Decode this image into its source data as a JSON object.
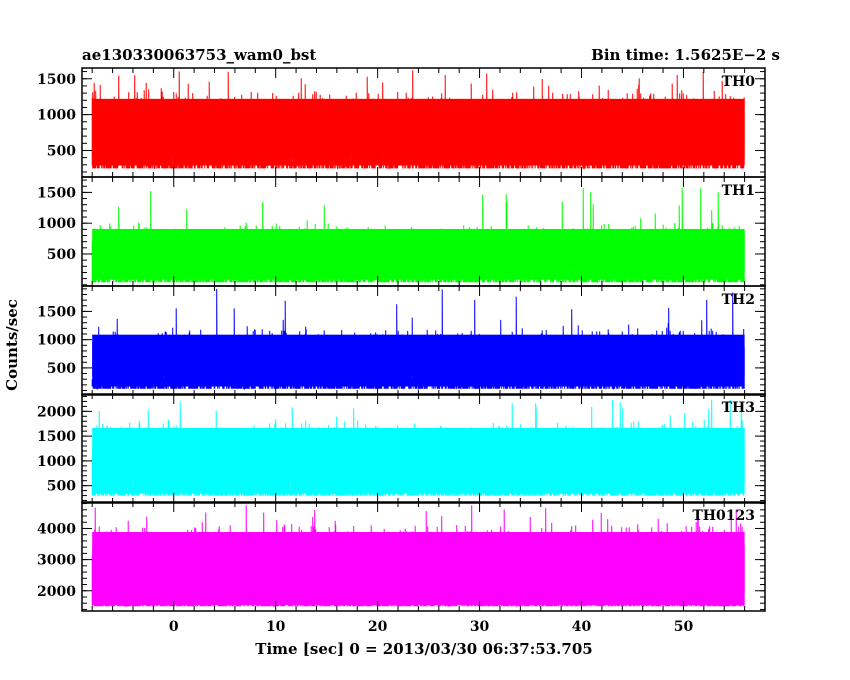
{
  "header": {
    "left_title": "ae130330063753_wam0_bst",
    "right_title": "Bin time: 1.5625E−2 s"
  },
  "chart_data": [
    {
      "type": "line",
      "name": "TH0",
      "color": "#ff0000",
      "xlim": [
        -9,
        58
      ],
      "ylim": [
        130,
        1650
      ],
      "yticks": [
        500,
        1000,
        1500
      ],
      "ytick_labels": [
        "500",
        "1000",
        "1500"
      ],
      "data_range": [
        -8,
        56
      ],
      "level": {
        "base": 250,
        "lo": 400,
        "hi": 1400,
        "peak": 1620
      }
    },
    {
      "type": "line",
      "name": "TH1",
      "color": "#00ff00",
      "xlim": [
        -9,
        58
      ],
      "ylim": [
        -20,
        1750
      ],
      "yticks": [
        500,
        1000,
        1500
      ],
      "ytick_labels": [
        "500",
        "1000",
        "1500"
      ],
      "data_range": [
        -8,
        56
      ],
      "level": {
        "base": 40,
        "lo": 250,
        "hi": 1050,
        "peak": 1600
      }
    },
    {
      "type": "line",
      "name": "TH2",
      "color": "#0000ff",
      "xlim": [
        -9,
        58
      ],
      "ylim": [
        20,
        1950
      ],
      "yticks": [
        500,
        1000,
        1500
      ],
      "ytick_labels": [
        "500",
        "1000",
        "1500"
      ],
      "data_range": [
        -8,
        56
      ],
      "level": {
        "base": 130,
        "lo": 350,
        "hi": 1250,
        "peak": 1900
      }
    },
    {
      "type": "line",
      "name": "TH3",
      "color": "#00ffff",
      "xlim": [
        -9,
        58
      ],
      "ylim": [
        150,
        2350
      ],
      "yticks": [
        500,
        1000,
        1500,
        2000
      ],
      "ytick_labels": [
        "500",
        "1000",
        "1500",
        "2000"
      ],
      "data_range": [
        -8,
        56
      ],
      "level": {
        "base": 300,
        "lo": 600,
        "hi": 1900,
        "peak": 2250
      }
    },
    {
      "type": "line",
      "name": "TH0123",
      "color": "#ff00ff",
      "xlim": [
        -9,
        58
      ],
      "ylim": [
        1350,
        4850
      ],
      "yticks": [
        2000,
        3000,
        4000
      ],
      "ytick_labels": [
        "2000",
        "3000",
        "4000"
      ],
      "data_range": [
        -8,
        56
      ],
      "level": {
        "base": 1500,
        "lo": 2000,
        "hi": 4300,
        "peak": 4750
      }
    }
  ],
  "x_axis": {
    "ticks": [
      0,
      10,
      20,
      30,
      40,
      50
    ],
    "tick_labels": [
      "0",
      "10",
      "20",
      "30",
      "40",
      "50"
    ],
    "label": "Time [sec] 0 = 2013/03/30 06:37:53.705"
  },
  "y_axis": {
    "label": "Counts/sec"
  }
}
